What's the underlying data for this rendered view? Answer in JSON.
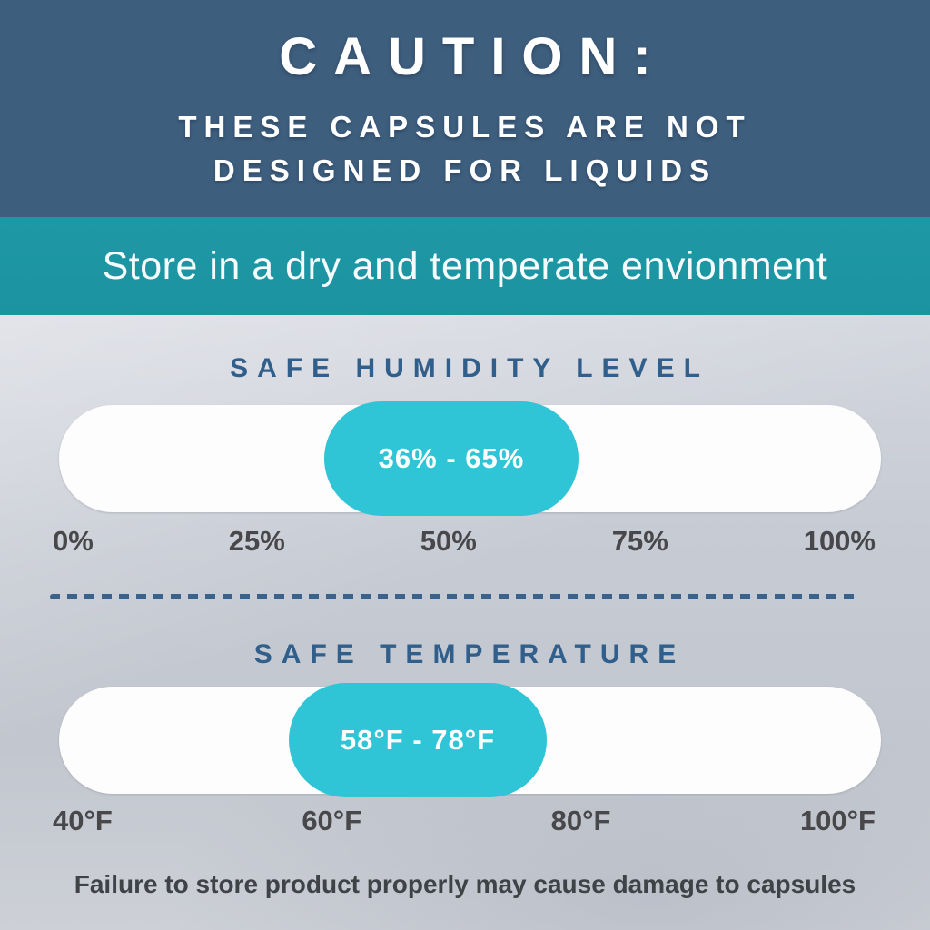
{
  "hero": {
    "title": "CAUTION:",
    "subtitle": "THESE CAPSULES ARE NOT DESIGNED FOR LIQUIDS"
  },
  "band": {
    "text": "Store in a dry and temperate envionment"
  },
  "humidity": {
    "heading": "SAFE HUMIDITY LEVEL",
    "range_label": "36% - 65%",
    "safe_min": 36,
    "safe_max": 65,
    "unit": "%",
    "scale_min": 0,
    "scale_max": 100,
    "scale": [
      "0%",
      "25%",
      "50%",
      "75%",
      "100%"
    ]
  },
  "temperature": {
    "heading": "SAFE TEMPERATURE",
    "range_label": "58°F - 78°F",
    "safe_min": 58,
    "safe_max": 78,
    "unit": "°F",
    "scale_min": 40,
    "scale_max": 100,
    "scale": [
      "40°F",
      "60°F",
      "80°F",
      "100°F"
    ]
  },
  "footer": {
    "text": "Failure to store product properly may cause damage to capsules"
  },
  "colors": {
    "hero_blue": "#3e5e7e",
    "band_teal": "#1c96a4",
    "pill_teal": "#2fc4d6",
    "heading_blue": "#315f8c",
    "scale_grey": "#48484b"
  }
}
